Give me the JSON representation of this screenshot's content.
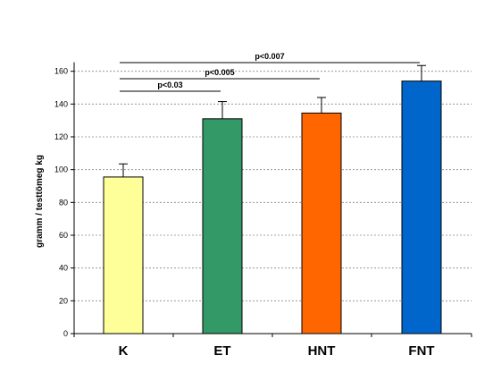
{
  "chart_data": {
    "type": "bar",
    "title": "",
    "xlabel": "",
    "ylabel": "gramm / testtömeg kg",
    "categories": [
      "K",
      "ET",
      "HNT",
      "FNT"
    ],
    "values": [
      95.5,
      131,
      134.5,
      154
    ],
    "error_plus": [
      8,
      10.5,
      9.5,
      9.5
    ],
    "bar_colors": [
      "#ffff99",
      "#339966",
      "#ff6600",
      "#0066cc"
    ],
    "ylim": [
      0,
      180
    ],
    "yticks": [
      0,
      20,
      40,
      60,
      80,
      100,
      120,
      140,
      160
    ],
    "grid": true,
    "legend": "none",
    "significance": [
      {
        "label": "p<0.03",
        "from": "K",
        "to": "ET"
      },
      {
        "label": "p<0.005",
        "from": "K",
        "to": "HNT"
      },
      {
        "label": "p<0.007",
        "from": "K",
        "to": "FNT"
      }
    ]
  }
}
